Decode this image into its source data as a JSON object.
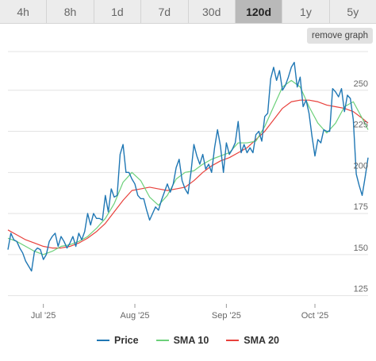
{
  "tabs": [
    {
      "label": "4h",
      "active": false
    },
    {
      "label": "8h",
      "active": false
    },
    {
      "label": "1d",
      "active": false
    },
    {
      "label": "7d",
      "active": false
    },
    {
      "label": "30d",
      "active": false
    },
    {
      "label": "120d",
      "active": true
    },
    {
      "label": "1y",
      "active": false
    },
    {
      "label": "5y",
      "active": false
    }
  ],
  "remove_graph_label": "remove graph",
  "colors": {
    "price": "#1f77b4",
    "sma10": "#6cd07a",
    "sma20": "#e8413c",
    "grid": "#e3e3e3"
  },
  "chart_data": {
    "type": "line",
    "x_start": "2025-06-19",
    "x_end": "2025-10-19",
    "x_ticks": [
      {
        "label": "Jul '25",
        "date": "2025-07-01"
      },
      {
        "label": "Aug '25",
        "date": "2025-08-01"
      },
      {
        "label": "Sep '25",
        "date": "2025-09-01"
      },
      {
        "label": "Oct '25",
        "date": "2025-10-01"
      }
    ],
    "y_ticks": [
      125,
      150,
      175,
      200,
      225,
      250
    ],
    "ylim": [
      120,
      275
    ],
    "grid": "horizontal",
    "legend_position": "bottom",
    "series": [
      {
        "name": "Price",
        "key": "price",
        "points": [
          [
            "2025-06-19",
            153
          ],
          [
            "2025-06-20",
            163
          ],
          [
            "2025-06-21",
            159
          ],
          [
            "2025-06-22",
            158
          ],
          [
            "2025-06-23",
            154
          ],
          [
            "2025-06-24",
            151
          ],
          [
            "2025-06-25",
            146
          ],
          [
            "2025-06-26",
            143
          ],
          [
            "2025-06-27",
            140
          ],
          [
            "2025-06-28",
            152
          ],
          [
            "2025-06-29",
            154
          ],
          [
            "2025-06-30",
            153
          ],
          [
            "2025-07-01",
            147
          ],
          [
            "2025-07-02",
            150
          ],
          [
            "2025-07-03",
            158
          ],
          [
            "2025-07-04",
            161
          ],
          [
            "2025-07-05",
            163
          ],
          [
            "2025-07-06",
            155
          ],
          [
            "2025-07-07",
            161
          ],
          [
            "2025-07-08",
            158
          ],
          [
            "2025-07-09",
            154
          ],
          [
            "2025-07-10",
            157
          ],
          [
            "2025-07-11",
            161
          ],
          [
            "2025-07-12",
            155
          ],
          [
            "2025-07-13",
            163
          ],
          [
            "2025-07-14",
            159
          ],
          [
            "2025-07-15",
            164
          ],
          [
            "2025-07-16",
            175
          ],
          [
            "2025-07-17",
            168
          ],
          [
            "2025-07-18",
            175
          ],
          [
            "2025-07-19",
            172
          ],
          [
            "2025-07-20",
            172
          ],
          [
            "2025-07-21",
            171
          ],
          [
            "2025-07-22",
            186
          ],
          [
            "2025-07-23",
            176
          ],
          [
            "2025-07-24",
            190
          ],
          [
            "2025-07-25",
            185
          ],
          [
            "2025-07-26",
            186
          ],
          [
            "2025-07-27",
            211
          ],
          [
            "2025-07-28",
            217
          ],
          [
            "2025-07-29",
            200
          ],
          [
            "2025-07-30",
            200
          ],
          [
            "2025-07-31",
            196
          ],
          [
            "2025-08-01",
            193
          ],
          [
            "2025-08-02",
            186
          ],
          [
            "2025-08-03",
            184
          ],
          [
            "2025-08-04",
            184
          ],
          [
            "2025-08-05",
            177
          ],
          [
            "2025-08-06",
            171
          ],
          [
            "2025-08-07",
            175
          ],
          [
            "2025-08-08",
            179
          ],
          [
            "2025-08-09",
            177
          ],
          [
            "2025-08-10",
            183
          ],
          [
            "2025-08-11",
            188
          ],
          [
            "2025-08-12",
            193
          ],
          [
            "2025-08-13",
            188
          ],
          [
            "2025-08-14",
            193
          ],
          [
            "2025-08-15",
            203
          ],
          [
            "2025-08-16",
            208
          ],
          [
            "2025-08-17",
            195
          ],
          [
            "2025-08-18",
            190
          ],
          [
            "2025-08-19",
            187
          ],
          [
            "2025-08-20",
            200
          ],
          [
            "2025-08-21",
            217
          ],
          [
            "2025-08-22",
            210
          ],
          [
            "2025-08-23",
            205
          ],
          [
            "2025-08-24",
            211
          ],
          [
            "2025-08-25",
            202
          ],
          [
            "2025-08-26",
            205
          ],
          [
            "2025-08-27",
            200
          ],
          [
            "2025-08-28",
            215
          ],
          [
            "2025-08-29",
            226
          ],
          [
            "2025-08-30",
            216
          ],
          [
            "2025-08-31",
            200
          ],
          [
            "2025-09-01",
            218
          ],
          [
            "2025-09-02",
            211
          ],
          [
            "2025-09-03",
            214
          ],
          [
            "2025-09-04",
            218
          ],
          [
            "2025-09-05",
            231
          ],
          [
            "2025-09-06",
            212
          ],
          [
            "2025-09-07",
            217
          ],
          [
            "2025-09-08",
            212
          ],
          [
            "2025-09-09",
            215
          ],
          [
            "2025-09-10",
            212
          ],
          [
            "2025-09-11",
            223
          ],
          [
            "2025-09-12",
            225
          ],
          [
            "2025-09-13",
            219
          ],
          [
            "2025-09-14",
            234
          ],
          [
            "2025-09-15",
            236
          ],
          [
            "2025-09-16",
            257
          ],
          [
            "2025-09-17",
            264
          ],
          [
            "2025-09-18",
            256
          ],
          [
            "2025-09-19",
            262
          ],
          [
            "2025-09-20",
            250
          ],
          [
            "2025-09-21",
            253
          ],
          [
            "2025-09-22",
            258
          ],
          [
            "2025-09-23",
            264
          ],
          [
            "2025-09-24",
            267
          ],
          [
            "2025-09-25",
            252
          ],
          [
            "2025-09-26",
            258
          ],
          [
            "2025-09-27",
            240
          ],
          [
            "2025-09-28",
            244
          ],
          [
            "2025-09-29",
            236
          ],
          [
            "2025-09-30",
            222
          ],
          [
            "2025-10-01",
            210
          ],
          [
            "2025-10-02",
            220
          ],
          [
            "2025-10-03",
            218
          ],
          [
            "2025-10-04",
            226
          ],
          [
            "2025-10-05",
            225
          ],
          [
            "2025-10-06",
            225
          ],
          [
            "2025-10-07",
            251
          ],
          [
            "2025-10-08",
            249
          ],
          [
            "2025-10-09",
            246
          ],
          [
            "2025-10-10",
            251
          ],
          [
            "2025-10-11",
            237
          ],
          [
            "2025-10-12",
            247
          ],
          [
            "2025-10-13",
            245
          ],
          [
            "2025-10-14",
            232
          ],
          [
            "2025-10-15",
            199
          ],
          [
            "2025-10-16",
            192
          ],
          [
            "2025-10-17",
            186
          ],
          [
            "2025-10-18",
            197
          ],
          [
            "2025-10-19",
            209
          ]
        ]
      },
      {
        "name": "SMA 10",
        "key": "sma10",
        "points": [
          [
            "2025-06-19",
            160
          ],
          [
            "2025-06-22",
            158
          ],
          [
            "2025-06-25",
            155
          ],
          [
            "2025-06-28",
            152
          ],
          [
            "2025-07-01",
            150
          ],
          [
            "2025-07-04",
            152
          ],
          [
            "2025-07-07",
            155
          ],
          [
            "2025-07-10",
            156
          ],
          [
            "2025-07-13",
            158
          ],
          [
            "2025-07-16",
            161
          ],
          [
            "2025-07-19",
            166
          ],
          [
            "2025-07-22",
            172
          ],
          [
            "2025-07-25",
            181
          ],
          [
            "2025-07-28",
            194
          ],
          [
            "2025-07-31",
            200
          ],
          [
            "2025-08-03",
            195
          ],
          [
            "2025-08-06",
            185
          ],
          [
            "2025-08-09",
            180
          ],
          [
            "2025-08-12",
            186
          ],
          [
            "2025-08-15",
            196
          ],
          [
            "2025-08-18",
            200
          ],
          [
            "2025-08-21",
            201
          ],
          [
            "2025-08-24",
            205
          ],
          [
            "2025-08-27",
            208
          ],
          [
            "2025-08-30",
            210
          ],
          [
            "2025-09-02",
            212
          ],
          [
            "2025-09-05",
            218
          ],
          [
            "2025-09-08",
            218
          ],
          [
            "2025-09-11",
            219
          ],
          [
            "2025-09-14",
            228
          ],
          [
            "2025-09-17",
            240
          ],
          [
            "2025-09-20",
            252
          ],
          [
            "2025-09-23",
            256
          ],
          [
            "2025-09-26",
            252
          ],
          [
            "2025-09-29",
            240
          ],
          [
            "2025-10-02",
            230
          ],
          [
            "2025-10-05",
            224
          ],
          [
            "2025-10-08",
            230
          ],
          [
            "2025-10-11",
            240
          ],
          [
            "2025-10-14",
            243
          ],
          [
            "2025-10-17",
            233
          ],
          [
            "2025-10-19",
            226
          ]
        ]
      },
      {
        "name": "SMA 20",
        "key": "sma20",
        "points": [
          [
            "2025-06-19",
            165
          ],
          [
            "2025-06-22",
            162
          ],
          [
            "2025-06-25",
            159
          ],
          [
            "2025-06-28",
            157
          ],
          [
            "2025-07-01",
            155
          ],
          [
            "2025-07-04",
            154
          ],
          [
            "2025-07-07",
            154
          ],
          [
            "2025-07-10",
            155
          ],
          [
            "2025-07-13",
            157
          ],
          [
            "2025-07-16",
            160
          ],
          [
            "2025-07-19",
            164
          ],
          [
            "2025-07-22",
            169
          ],
          [
            "2025-07-25",
            176
          ],
          [
            "2025-07-28",
            183
          ],
          [
            "2025-07-31",
            189
          ],
          [
            "2025-08-03",
            190
          ],
          [
            "2025-08-06",
            191
          ],
          [
            "2025-08-09",
            190
          ],
          [
            "2025-08-12",
            189
          ],
          [
            "2025-08-15",
            190
          ],
          [
            "2025-08-18",
            191
          ],
          [
            "2025-08-21",
            195
          ],
          [
            "2025-08-24",
            200
          ],
          [
            "2025-08-27",
            204
          ],
          [
            "2025-08-30",
            207
          ],
          [
            "2025-09-02",
            209
          ],
          [
            "2025-09-05",
            212
          ],
          [
            "2025-09-08",
            215
          ],
          [
            "2025-09-11",
            220
          ],
          [
            "2025-09-14",
            225
          ],
          [
            "2025-09-17",
            232
          ],
          [
            "2025-09-20",
            239
          ],
          [
            "2025-09-23",
            243
          ],
          [
            "2025-09-26",
            244
          ],
          [
            "2025-09-29",
            244
          ],
          [
            "2025-10-02",
            243
          ],
          [
            "2025-10-05",
            241
          ],
          [
            "2025-10-08",
            240
          ],
          [
            "2025-10-11",
            239
          ],
          [
            "2025-10-14",
            237
          ],
          [
            "2025-10-17",
            233
          ],
          [
            "2025-10-19",
            230
          ]
        ]
      }
    ]
  }
}
